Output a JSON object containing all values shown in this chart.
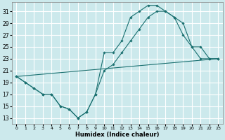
{
  "xlabel": "Humidex (Indice chaleur)",
  "bg_color": "#cce9ec",
  "grid_color": "#ffffff",
  "line_color": "#1a7070",
  "xlim": [
    -0.5,
    23.5
  ],
  "ylim": [
    12.0,
    32.5
  ],
  "xticks": [
    0,
    1,
    2,
    3,
    4,
    5,
    6,
    7,
    8,
    9,
    10,
    11,
    12,
    13,
    14,
    15,
    16,
    17,
    18,
    19,
    20,
    21,
    22,
    23
  ],
  "yticks": [
    13,
    15,
    17,
    19,
    21,
    23,
    25,
    27,
    29,
    31
  ],
  "line1_x": [
    0,
    1,
    2,
    3,
    4,
    5,
    6,
    7,
    8,
    9,
    10,
    11,
    12,
    13,
    14,
    15,
    16,
    17,
    18,
    19,
    20,
    21,
    22,
    23
  ],
  "line1_y": [
    20,
    19,
    18,
    17,
    17,
    15,
    14.5,
    13,
    14,
    17,
    24,
    24,
    26,
    30,
    31,
    32,
    32,
    31,
    30,
    29,
    25,
    25,
    23,
    23
  ],
  "line2_x": [
    0,
    1,
    2,
    3,
    4,
    5,
    6,
    7,
    8,
    9,
    10,
    11,
    12,
    13,
    14,
    15,
    16,
    17,
    18,
    19,
    20,
    21,
    22,
    23
  ],
  "line2_y": [
    20,
    19,
    18,
    17,
    17,
    15,
    14.5,
    13,
    14,
    17,
    21,
    22,
    24,
    26,
    28,
    30,
    31,
    31,
    30,
    27,
    25,
    23,
    23,
    23
  ],
  "line3_x": [
    0,
    23
  ],
  "line3_y": [
    20,
    23
  ]
}
